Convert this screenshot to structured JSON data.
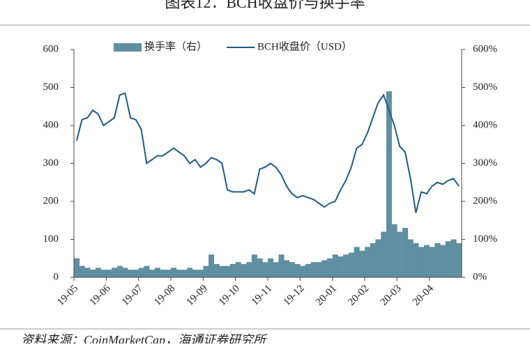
{
  "chart_data": {
    "type": "line",
    "title": "图表12：BCH收盘价与换手率",
    "source": "资料来源：CoinMarketCap，海通证券研究所",
    "categories": [
      "19-05",
      null,
      null,
      null,
      null,
      null,
      "19-06",
      null,
      null,
      null,
      null,
      null,
      "19-07",
      null,
      null,
      null,
      null,
      null,
      "19-08",
      null,
      null,
      null,
      null,
      null,
      "19-09",
      null,
      null,
      null,
      null,
      null,
      "19-10",
      null,
      null,
      null,
      null,
      null,
      "19-11",
      null,
      null,
      null,
      null,
      null,
      "19-12",
      null,
      null,
      null,
      null,
      null,
      "20-01",
      null,
      null,
      null,
      null,
      null,
      "20-02",
      null,
      null,
      null,
      null,
      null,
      "20-03",
      null,
      null,
      null,
      null,
      null,
      "20-04",
      null,
      null,
      null,
      null,
      null
    ],
    "series": [
      {
        "name": "换手率（右）",
        "kind": "bar",
        "axis": "y2",
        "color": "#5f8fa0",
        "values": [
          50,
          30,
          25,
          20,
          25,
          20,
          20,
          25,
          30,
          25,
          20,
          20,
          25,
          30,
          20,
          25,
          20,
          20,
          25,
          20,
          20,
          25,
          20,
          20,
          30,
          60,
          35,
          30,
          30,
          35,
          40,
          35,
          40,
          60,
          50,
          40,
          50,
          40,
          60,
          45,
          40,
          35,
          30,
          35,
          40,
          40,
          45,
          50,
          60,
          55,
          60,
          65,
          80,
          70,
          80,
          90,
          100,
          120,
          490,
          140,
          120,
          130,
          100,
          90,
          80,
          85,
          80,
          90,
          85,
          95,
          100,
          90
        ]
      },
      {
        "name": "BCH收盘价（USD）",
        "kind": "line",
        "color": "#1d5a85",
        "values": [
          360,
          415,
          420,
          440,
          430,
          400,
          410,
          420,
          480,
          485,
          420,
          415,
          390,
          300,
          310,
          320,
          320,
          330,
          340,
          330,
          320,
          300,
          310,
          290,
          300,
          315,
          310,
          300,
          230,
          225,
          225,
          225,
          230,
          220,
          285,
          290,
          300,
          290,
          270,
          240,
          220,
          210,
          215,
          210,
          205,
          195,
          185,
          195,
          200,
          230,
          255,
          290,
          340,
          350,
          380,
          420,
          460,
          480,
          440,
          400,
          345,
          330,
          260,
          170,
          225,
          220,
          240,
          250,
          245,
          255,
          260,
          240
        ]
      }
    ],
    "ylim": [
      0,
      600
    ],
    "yticks": [
      0,
      100,
      200,
      300,
      400,
      500,
      600
    ],
    "y2lim": [
      0,
      600
    ],
    "y2ticks": [
      {
        "value": 0,
        "label": "0%"
      },
      {
        "value": 100,
        "label": "100%"
      },
      {
        "value": 200,
        "label": "200%"
      },
      {
        "value": 300,
        "label": "300%"
      },
      {
        "value": 400,
        "label": "400%"
      },
      {
        "value": 500,
        "label": "500%"
      },
      {
        "value": 600,
        "label": "600%"
      }
    ]
  }
}
